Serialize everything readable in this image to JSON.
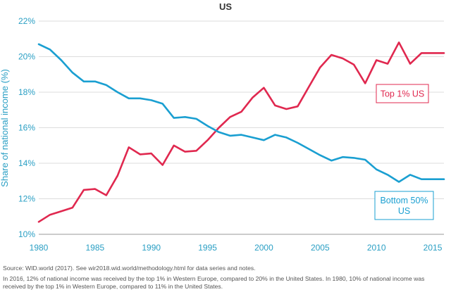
{
  "chart_data": {
    "type": "line",
    "title": "US",
    "xlabel": "",
    "ylabel": "Share of national income (%)",
    "xlim": [
      1980,
      2016
    ],
    "ylim": [
      10,
      22
    ],
    "x_ticks": [
      1980,
      1985,
      1990,
      1995,
      2000,
      2005,
      2010,
      2015
    ],
    "y_ticks": [
      "10%",
      "12%",
      "14%",
      "16%",
      "18%",
      "20%",
      "22%"
    ],
    "y_tick_values": [
      10,
      12,
      14,
      16,
      18,
      20,
      22
    ],
    "grid": "horizontal",
    "x": [
      1980,
      1981,
      1982,
      1983,
      1984,
      1985,
      1986,
      1987,
      1988,
      1989,
      1990,
      1991,
      1992,
      1993,
      1994,
      1995,
      1996,
      1997,
      1998,
      1999,
      2000,
      2001,
      2002,
      2003,
      2004,
      2005,
      2006,
      2007,
      2008,
      2009,
      2010,
      2011,
      2012,
      2013,
      2014,
      2015,
      2016
    ],
    "series": [
      {
        "name": "Top 1% US",
        "color": "#e0284f",
        "values": [
          10.7,
          11.1,
          11.3,
          11.5,
          12.5,
          12.55,
          12.2,
          13.3,
          14.9,
          14.5,
          14.55,
          13.9,
          15.0,
          14.65,
          14.7,
          15.3,
          16.0,
          16.6,
          16.9,
          17.7,
          18.25,
          17.25,
          17.05,
          17.2,
          18.3,
          19.4,
          20.1,
          19.9,
          19.55,
          18.5,
          19.8,
          19.6,
          20.8,
          19.6,
          20.2,
          20.2,
          20.2
        ],
        "annotation": "Top 1% US",
        "annotation_position": "right, middle"
      },
      {
        "name": "Bottom 50% US",
        "color": "#1a9fd1",
        "values": [
          20.7,
          20.4,
          19.8,
          19.1,
          18.6,
          18.6,
          18.4,
          18.0,
          17.65,
          17.65,
          17.55,
          17.35,
          16.55,
          16.6,
          16.5,
          16.1,
          15.75,
          15.55,
          15.6,
          15.45,
          15.3,
          15.6,
          15.45,
          15.15,
          14.8,
          14.45,
          14.15,
          14.35,
          14.3,
          14.2,
          13.65,
          13.35,
          12.95,
          13.35,
          13.1,
          13.1,
          13.1
        ],
        "annotation_lines": [
          "Bottom 50%",
          "US"
        ],
        "annotation_position": "bottom-right"
      }
    ]
  },
  "notes": {
    "source": "Source:  WID.world (2017). See wir2018.wid.world/methodology.html for data series and notes.",
    "text": "In 2016, 12% of national income was received by the top 1% in Western Europe, compared to 20% in the United States. In 1980, 10% of national income was received by the top 1% in Western Europe, compared to 11% in the United States."
  }
}
